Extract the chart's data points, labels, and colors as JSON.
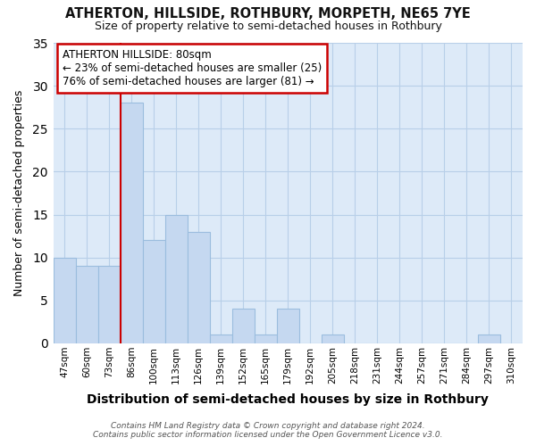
{
  "title": "ATHERTON, HILLSIDE, ROTHBURY, MORPETH, NE65 7YE",
  "subtitle": "Size of property relative to semi-detached houses in Rothbury",
  "xlabel": "Distribution of semi-detached houses by size in Rothbury",
  "ylabel": "Number of semi-detached properties",
  "categories": [
    "47sqm",
    "60sqm",
    "73sqm",
    "86sqm",
    "100sqm",
    "113sqm",
    "126sqm",
    "139sqm",
    "152sqm",
    "165sqm",
    "179sqm",
    "192sqm",
    "205sqm",
    "218sqm",
    "231sqm",
    "244sqm",
    "257sqm",
    "271sqm",
    "284sqm",
    "297sqm",
    "310sqm"
  ],
  "values": [
    10,
    9,
    9,
    28,
    12,
    15,
    13,
    1,
    4,
    1,
    4,
    0,
    1,
    0,
    0,
    0,
    0,
    0,
    0,
    1,
    0
  ],
  "bar_color": "#c5d8f0",
  "bar_edge_color": "#9bbdde",
  "plot_bg_color": "#ddeaf8",
  "fig_bg_color": "#ffffff",
  "grid_color": "#b8cfe8",
  "property_marker_index": 3,
  "annotation_title": "ATHERTON HILLSIDE: 80sqm",
  "annotation_line1": "← 23% of semi-detached houses are smaller (25)",
  "annotation_line2": "76% of semi-detached houses are larger (81) →",
  "marker_line_color": "#cc0000",
  "ylim": [
    0,
    35
  ],
  "yticks": [
    0,
    5,
    10,
    15,
    20,
    25,
    30,
    35
  ],
  "footnote1": "Contains HM Land Registry data © Crown copyright and database right 2024.",
  "footnote2": "Contains public sector information licensed under the Open Government Licence v3.0."
}
